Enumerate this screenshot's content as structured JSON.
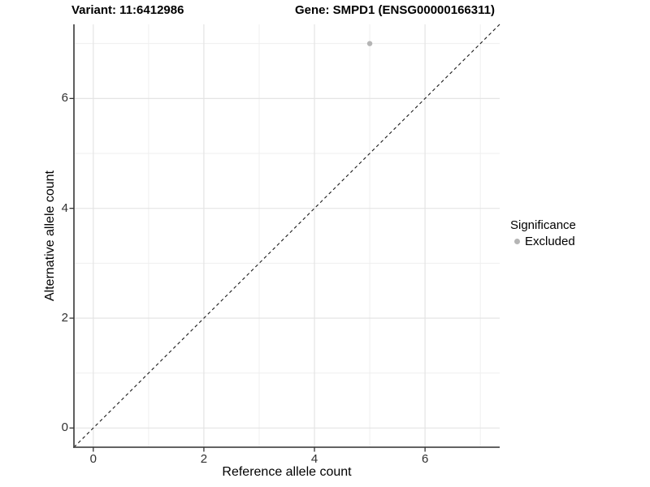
{
  "header": {
    "variant_title": "Variant: 11:6412986",
    "gene_title": "Gene: SMPD1 (ENSG00000166311)"
  },
  "legend": {
    "title": "Significance",
    "items": [
      {
        "label": "Excluded",
        "color": "#b5b5b5"
      }
    ]
  },
  "chart_data": {
    "type": "scatter",
    "xlabel": "Reference allele count",
    "ylabel": "Alternative allele count",
    "xlim": [
      -0.35,
      7.35
    ],
    "ylim": [
      -0.35,
      7.35
    ],
    "x_ticks": [
      0,
      2,
      4,
      6
    ],
    "y_ticks": [
      0,
      2,
      4,
      6
    ],
    "x_minor_gridlines": [
      1,
      3,
      5,
      7
    ],
    "y_minor_gridlines": [
      1,
      3,
      5,
      7
    ],
    "grid": true,
    "legend_position": "right",
    "series": [
      {
        "name": "Excluded",
        "color": "#b5b5b5",
        "points": [
          {
            "x": 5,
            "y": 7
          }
        ]
      }
    ],
    "reference_line": {
      "slope": 1,
      "intercept": 0,
      "style": "dashed",
      "color": "#1a1a1a"
    }
  },
  "colors": {
    "background": "#ffffff",
    "grid_major": "#e4e4e4",
    "grid_minor": "#efefef",
    "axis_line": "#4d4d4d",
    "tick_mark": "#333333",
    "tick_label": "#303030",
    "point": "#b5b5b5"
  }
}
